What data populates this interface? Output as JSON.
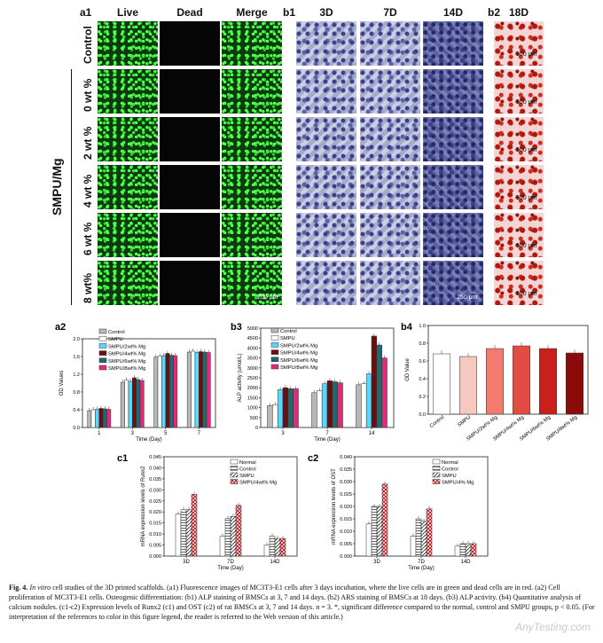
{
  "panels": {
    "a1": "a1",
    "b1": "b1",
    "b2": "b2",
    "a2": "a2",
    "b3": "b3",
    "b4": "b4",
    "c1": "c1",
    "c2": "c2"
  },
  "fluorescence": {
    "columns": [
      "Live",
      "Dead",
      "Merge"
    ],
    "rows": [
      "Control",
      "0 wt %",
      "2 wt %",
      "4 wt %",
      "6 wt %",
      "8 wt%"
    ],
    "group_label": "SMPU/Mg",
    "scale_bar": "200 μm"
  },
  "alp_staining": {
    "columns": [
      "3D",
      "7D",
      "14D"
    ],
    "scale_bar": "250 μm"
  },
  "ars_staining": {
    "column": "18D",
    "scale_bar": "500 μm"
  },
  "chart_data": [
    {
      "id": "a2",
      "type": "bar",
      "categories": [
        "1",
        "3",
        "5",
        "7"
      ],
      "xlabel": "Time (Day)",
      "ylabel": "OD Values",
      "ylim": [
        0,
        2.0
      ],
      "yticks": [
        "0.0",
        "0.4",
        "0.8",
        "1.2",
        "1.6",
        "2.0"
      ],
      "series": [
        {
          "name": "Control",
          "color": "#b8b8b8",
          "values": [
            0.38,
            1.02,
            1.59,
            1.7
          ]
        },
        {
          "name": "SMPU",
          "color": "#ffffff",
          "values": [
            0.4,
            1.07,
            1.61,
            1.72
          ]
        },
        {
          "name": "SMPU/2wt% Mg",
          "color": "#5ad7ff",
          "values": [
            0.41,
            1.04,
            1.62,
            1.69
          ]
        },
        {
          "name": "SMPU/4wt% Mg",
          "color": "#6b1010",
          "values": [
            0.43,
            1.12,
            1.67,
            1.71
          ]
        },
        {
          "name": "SMPU/6wt% Mg",
          "color": "#1f6a6e",
          "values": [
            0.42,
            1.08,
            1.63,
            1.7
          ]
        },
        {
          "name": "SMPU/8wt% Mg",
          "color": "#e8277a",
          "values": [
            0.41,
            1.06,
            1.62,
            1.69
          ]
        }
      ]
    },
    {
      "id": "b3",
      "type": "bar",
      "categories": [
        "3",
        "7",
        "14"
      ],
      "xlabel": "Time (Day)",
      "ylabel": "ALP activity (umol/L)",
      "ylim": [
        0,
        5000
      ],
      "yticks": [
        "0",
        "500",
        "1000",
        "1500",
        "2000",
        "2500",
        "3000",
        "3500",
        "4000",
        "4500",
        "5000"
      ],
      "series": [
        {
          "name": "Control",
          "color": "#b8b8b8",
          "values": [
            1100,
            1750,
            2150
          ]
        },
        {
          "name": "SMPU",
          "color": "#ffffff",
          "values": [
            1150,
            1850,
            2200
          ]
        },
        {
          "name": "SMPU/2wt% Mg",
          "color": "#5ad7ff",
          "values": [
            1900,
            2200,
            2700
          ]
        },
        {
          "name": "SMPU/4wt% Mg",
          "color": "#6b1010",
          "values": [
            2000,
            2350,
            4600
          ]
        },
        {
          "name": "SMPU/6wt% Mg",
          "color": "#1f6a6e",
          "values": [
            1950,
            2300,
            4150
          ]
        },
        {
          "name": "SMPU/8wt% Mg",
          "color": "#e8277a",
          "values": [
            1950,
            2250,
            3500
          ]
        }
      ]
    },
    {
      "id": "b4",
      "type": "bar",
      "categories": [
        "Control",
        "SMPU",
        "SMPU/2wt% Mg",
        "SMPU/4wt% Mg",
        "SMPU/6wt% Mg",
        "SMPU/8wt% Mg"
      ],
      "colors": [
        "#ffffff",
        "#f7c8c0",
        "#f27a6e",
        "#e34b43",
        "#c9201c",
        "#8b0b0b"
      ],
      "values": [
        0.68,
        0.65,
        0.74,
        0.77,
        0.74,
        0.69
      ],
      "xlabel": "",
      "ylabel": "OD Value",
      "ylim": [
        0,
        1.0
      ],
      "yticks": [
        "0.0",
        "0.2",
        "0.4",
        "0.6",
        "0.8",
        "1.0"
      ]
    },
    {
      "id": "c1",
      "type": "bar",
      "categories": [
        "3D",
        "7D",
        "14D"
      ],
      "xlabel": "Time (Day)",
      "ylabel": "mRNA expression levels of Runx2",
      "ylim": [
        0,
        0.045
      ],
      "yticks": [
        "0.000",
        "0.005",
        "0.010",
        "0.015",
        "0.020",
        "0.025",
        "0.030",
        "0.035",
        "0.040",
        "0.045"
      ],
      "series": [
        {
          "name": "Normal",
          "values": [
            0.019,
            0.009,
            0.005
          ]
        },
        {
          "name": "Control",
          "values": [
            0.021,
            0.017,
            0.009
          ]
        },
        {
          "name": "SMPU",
          "values": [
            0.021,
            0.018,
            0.008
          ]
        },
        {
          "name": "SMPU/4wt% Mg",
          "values": [
            0.028,
            0.023,
            0.008
          ]
        }
      ]
    },
    {
      "id": "c2",
      "type": "bar",
      "categories": [
        "3D",
        "7D",
        "14D"
      ],
      "xlabel": "Time (Day)",
      "ylabel": "mRNA expression levels of OST",
      "ylim": [
        0,
        0.04
      ],
      "yticks": [
        "0.000",
        "0.005",
        "0.010",
        "0.015",
        "0.020",
        "0.025",
        "0.030",
        "0.035",
        "0.040"
      ],
      "series": [
        {
          "name": "Normal",
          "values": [
            0.013,
            0.008,
            0.004
          ]
        },
        {
          "name": "Control",
          "values": [
            0.02,
            0.015,
            0.005
          ]
        },
        {
          "name": "SMPU",
          "values": [
            0.02,
            0.014,
            0.005
          ]
        },
        {
          "name": "SMPU/4% Mg",
          "values": [
            0.029,
            0.019,
            0.005
          ]
        }
      ]
    }
  ],
  "caption": {
    "prefix": "Fig. 4.",
    "lead": "In vitro",
    "text": "cell studies of the 3D printed scaffolds. (a1) Fluorescence images of MC3T3-E1 cells after 3 days incubation, where the live cells are in green and dead cells are in red. (a2) Cell proliferation of MC3T3-E1 cells. Osteogenic differentiation: (b1) ALP staining of BMSCs at 3, 7 and 14 days. (b2) ARS staining of BMSCs at 18 days. (b3) ALP activity. (b4) Quantitative analysis of calcium nodules. (c1-c2) Expression levels of Runx2 (c1) and OST (c2) of rat BMSCs at 3, 7 and 14 days. n = 3. *, significant difference compared to the normal, control and SMPU groups, p < 0.05. (For interpretation of the references to color in this figure legend, the reader is referred to the Web version of this article.)"
  },
  "watermark": "AnyTesting.com"
}
